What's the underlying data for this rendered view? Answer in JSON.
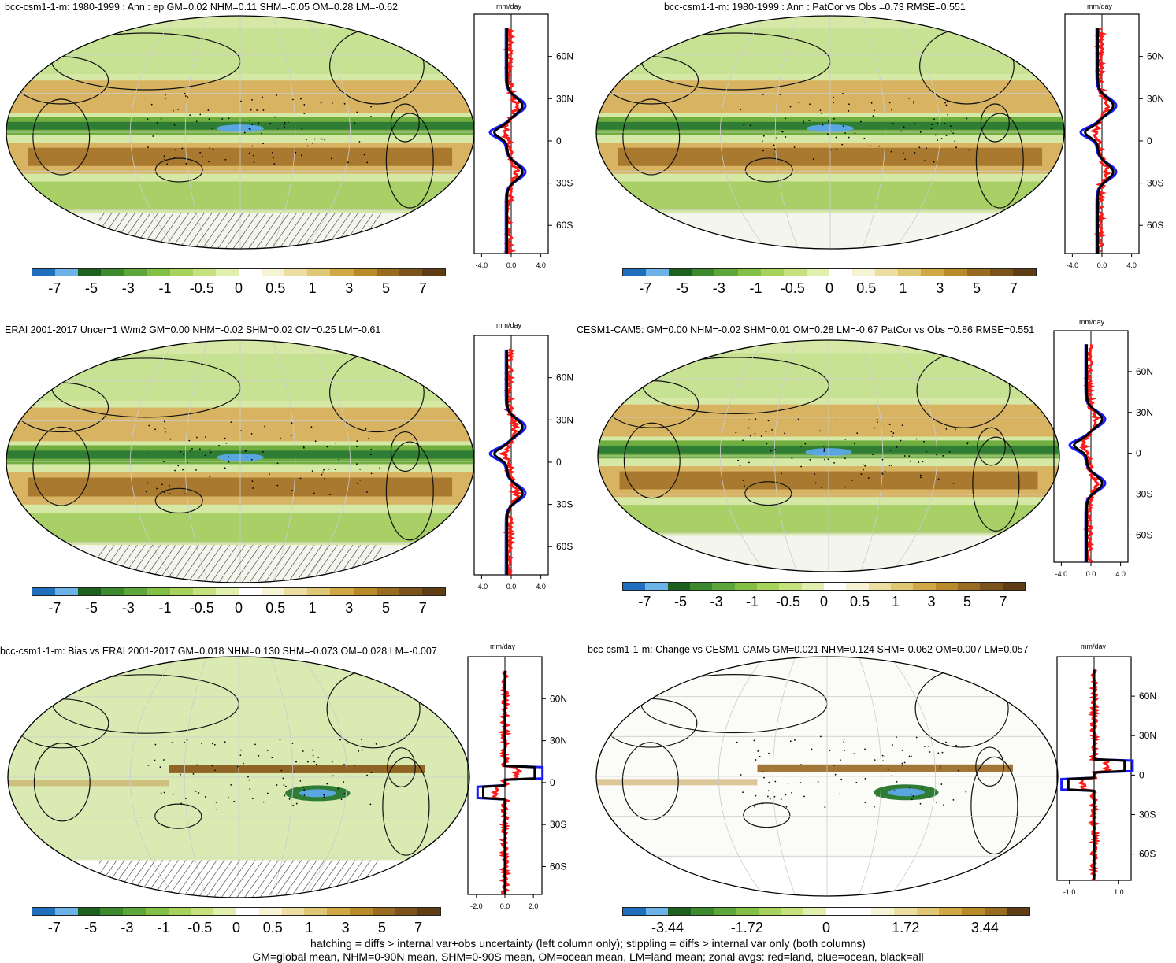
{
  "panels": [
    {
      "title": "bcc-csm1-1-m: 1980-1999 : Ann : ep GM=0.02 NHM=0.11 SHM=-0.05 OM=0.28 LM=-0.62",
      "unit": "mm/day",
      "lat_ticks": [
        "60N",
        "30N",
        "0",
        "30S",
        "60S"
      ],
      "x_ticks": [
        "-4.0",
        "0.0",
        "4.0"
      ],
      "x_range": [
        -5,
        5
      ],
      "scale_labels": [
        "-7",
        "-5",
        "-3",
        "-1",
        "-0.5",
        "0",
        "0.5",
        "1",
        "3",
        "5",
        "7"
      ],
      "colorbar": "brownbluegreen",
      "hatching": true
    },
    {
      "title": "bcc-csm1-1-m: 1980-1999 : Ann : PatCor vs Obs =0.73 RMSE=0.551",
      "unit": "mm/day",
      "lat_ticks": [
        "60N",
        "30N",
        "0",
        "30S",
        "60S"
      ],
      "x_ticks": [
        "-4.0",
        "0.0",
        "4.0"
      ],
      "x_range": [
        -5,
        5
      ],
      "scale_labels": [
        "-7",
        "-5",
        "-3",
        "-1",
        "-0.5",
        "0",
        "0.5",
        "1",
        "3",
        "5",
        "7"
      ],
      "colorbar": "brownbluegreen",
      "hatching": false
    },
    {
      "title": "ERAI 2001-2017 Uncer=1 W/m2 GM=0.00 NHM=-0.02 SHM=0.02 OM=0.25 LM=-0.61",
      "unit": "mm/day",
      "lat_ticks": [
        "60N",
        "30N",
        "0",
        "30S",
        "60S"
      ],
      "x_ticks": [
        "-4.0",
        "0.0",
        "4.0"
      ],
      "x_range": [
        -5,
        5
      ],
      "scale_labels": [
        "-7",
        "-5",
        "-3",
        "-1",
        "-0.5",
        "0",
        "0.5",
        "1",
        "3",
        "5",
        "7"
      ],
      "colorbar": "brownbluegreen",
      "hatching": true
    },
    {
      "title": "CESM1-CAM5: GM=0.00 NHM=-0.02 SHM=0.01 OM=0.28 LM=-0.67 PatCor vs Obs =0.86 RMSE=0.551",
      "unit": "mm/day",
      "lat_ticks": [
        "60N",
        "30N",
        "0",
        "30S",
        "60S"
      ],
      "x_ticks": [
        "-4.0",
        "0.0",
        "4.0"
      ],
      "x_range": [
        -5,
        5
      ],
      "scale_labels": [
        "-7",
        "-5",
        "-3",
        "-1",
        "-0.5",
        "0",
        "0.5",
        "1",
        "3",
        "5",
        "7"
      ],
      "colorbar": "brownbluegreen",
      "hatching": false
    },
    {
      "title": "bcc-csm1-1-m: Bias vs ERAI 2001-2017 GM=0.018 NHM=0.130 SHM=-0.073 OM=0.028 LM=-0.007",
      "unit": "mm/day",
      "lat_ticks": [
        "60N",
        "30N",
        "0",
        "30S",
        "60S"
      ],
      "x_ticks": [
        "-2.0",
        "0.0",
        "2.0"
      ],
      "x_range": [
        -2.6,
        2.6
      ],
      "scale_labels": [
        "-7",
        "-5",
        "-3",
        "-1",
        "-0.5",
        "0",
        "0.5",
        "1",
        "3",
        "5",
        "7"
      ],
      "colorbar": "brownbluegreen",
      "hatching": true
    },
    {
      "title": "bcc-csm1-1-m: Change vs CESM1-CAM5 GM=0.021 NHM=0.124 SHM=-0.062 OM=0.007 LM=0.057",
      "unit": "mm/day",
      "lat_ticks": [
        "60N",
        "30N",
        "0",
        "30S",
        "60S"
      ],
      "x_ticks": [
        "-1.0",
        "1.0"
      ],
      "x_range": [
        -1.5,
        1.5
      ],
      "scale_labels": [
        "-3.44",
        "-1.72",
        "0",
        "1.72",
        "3.44"
      ],
      "colorbar": "change",
      "hatching": false
    }
  ],
  "colors": {
    "land": "#ff1a1a",
    "ocean": "#1a1aff",
    "all": "#000000",
    "brownbluegreen": [
      "#1f6fbf",
      "#6cb4e8",
      "#1f5f1f",
      "#3c8a2e",
      "#5ea63a",
      "#84bf45",
      "#a6d15a",
      "#c6e27c",
      "#e0efae",
      "#ffffff",
      "#f6f2d4",
      "#ecdea0",
      "#e0c774",
      "#d0a846",
      "#b98a2a",
      "#9a6c22",
      "#7d531c",
      "#5e3c14"
    ],
    "change": [
      "#1f6fbf",
      "#6cb4e8",
      "#1f5f1f",
      "#3c8a2e",
      "#5ea63a",
      "#84bf45",
      "#a6d15a",
      "#c6e27c",
      "#e0efae",
      "#ffffff",
      "#ffffff",
      "#f6f2d4",
      "#ecdea0",
      "#e0c774",
      "#d0a846",
      "#b98a2a",
      "#9a6c22",
      "#5e3c14"
    ]
  },
  "footer": {
    "line1": "hatching = diffs > internal var+obs uncertainty (left column only); stippling = diffs > internal var only (both columns)",
    "line2": "GM=global mean, NHM=0-90N mean, SHM=0-90S mean, OM=ocean mean, LM=land mean; zonal avgs: red=land, blue=ocean, black=all"
  }
}
